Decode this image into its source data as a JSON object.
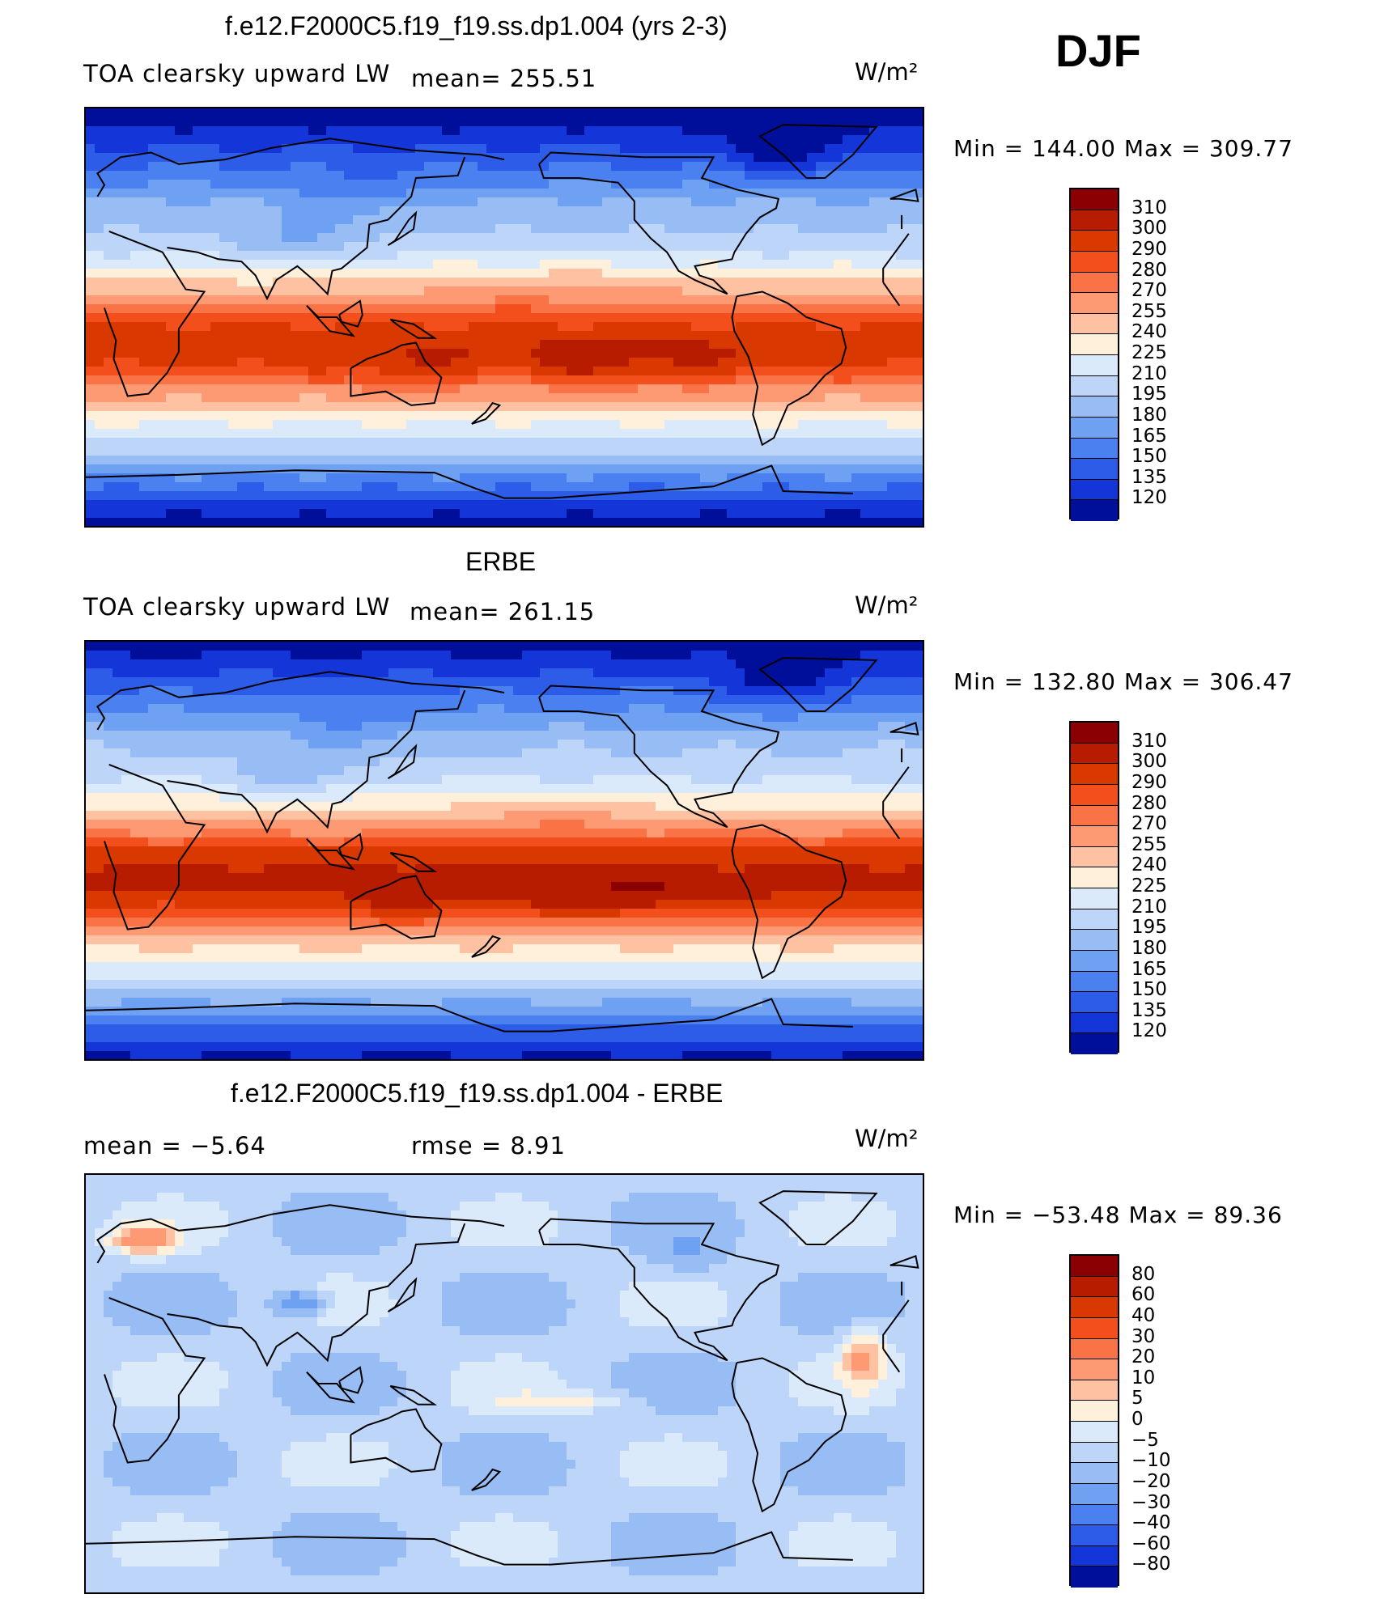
{
  "season": "DJF",
  "panels": [
    {
      "title": "f.e12.F2000C5.f19_f19.ss.dp1.004 (yrs 2-3)",
      "variable": "TOA clearsky upward LW",
      "stat_text": "mean=  255.51",
      "units": "W/m²",
      "min_max": "Min  =  144.00  Max  =  309.77",
      "colorbar": {
        "labels": [
          "310",
          "300",
          "290",
          "280",
          "270",
          "255",
          "240",
          "225",
          "210",
          "195",
          "180",
          "165",
          "150",
          "135",
          "120"
        ],
        "colors": [
          "#8b0000",
          "#b81c00",
          "#d93800",
          "#f24f1c",
          "#fa7346",
          "#fd9a74",
          "#fec2a3",
          "#fff0dc",
          "#dbeafb",
          "#bcd5f8",
          "#98bdf5",
          "#6fa1f2",
          "#4a80ef",
          "#2d5ce8",
          "#1436d8",
          "#000f99"
        ]
      },
      "field": "lw_model"
    },
    {
      "title": "ERBE",
      "variable": "TOA clearsky upward LW",
      "stat_text": "mean=  261.15",
      "units": "W/m²",
      "min_max": "Min  =  132.80  Max  =  306.47",
      "colorbar": {
        "labels": [
          "310",
          "300",
          "290",
          "280",
          "270",
          "255",
          "240",
          "225",
          "210",
          "195",
          "180",
          "165",
          "150",
          "135",
          "120"
        ],
        "colors": [
          "#8b0000",
          "#b81c00",
          "#d93800",
          "#f24f1c",
          "#fa7346",
          "#fd9a74",
          "#fec2a3",
          "#fff0dc",
          "#dbeafb",
          "#bcd5f8",
          "#98bdf5",
          "#6fa1f2",
          "#4a80ef",
          "#2d5ce8",
          "#1436d8",
          "#000f99"
        ]
      },
      "field": "lw_obs"
    },
    {
      "title": "f.e12.F2000C5.f19_f19.ss.dp1.004 - ERBE",
      "stat_mean_text": "mean  =    −5.64",
      "stat_rmse_text": "rmse  =    8.91",
      "units": "W/m²",
      "min_max": "Min  =  −53.48  Max  =   89.36",
      "colorbar": {
        "labels": [
          "80",
          "60",
          "40",
          "30",
          "20",
          "10",
          "5",
          "0",
          "−5",
          "−10",
          "−20",
          "−30",
          "−40",
          "−60",
          "−80"
        ],
        "colors": [
          "#8b0000",
          "#b81c00",
          "#d93800",
          "#f24f1c",
          "#fa7346",
          "#fd9a74",
          "#fec2a3",
          "#fff0dc",
          "#dbeafb",
          "#bcd5f8",
          "#98bdf5",
          "#6fa1f2",
          "#4a80ef",
          "#2d5ce8",
          "#1436d8",
          "#000f99"
        ]
      },
      "field": "lw_diff"
    }
  ]
}
